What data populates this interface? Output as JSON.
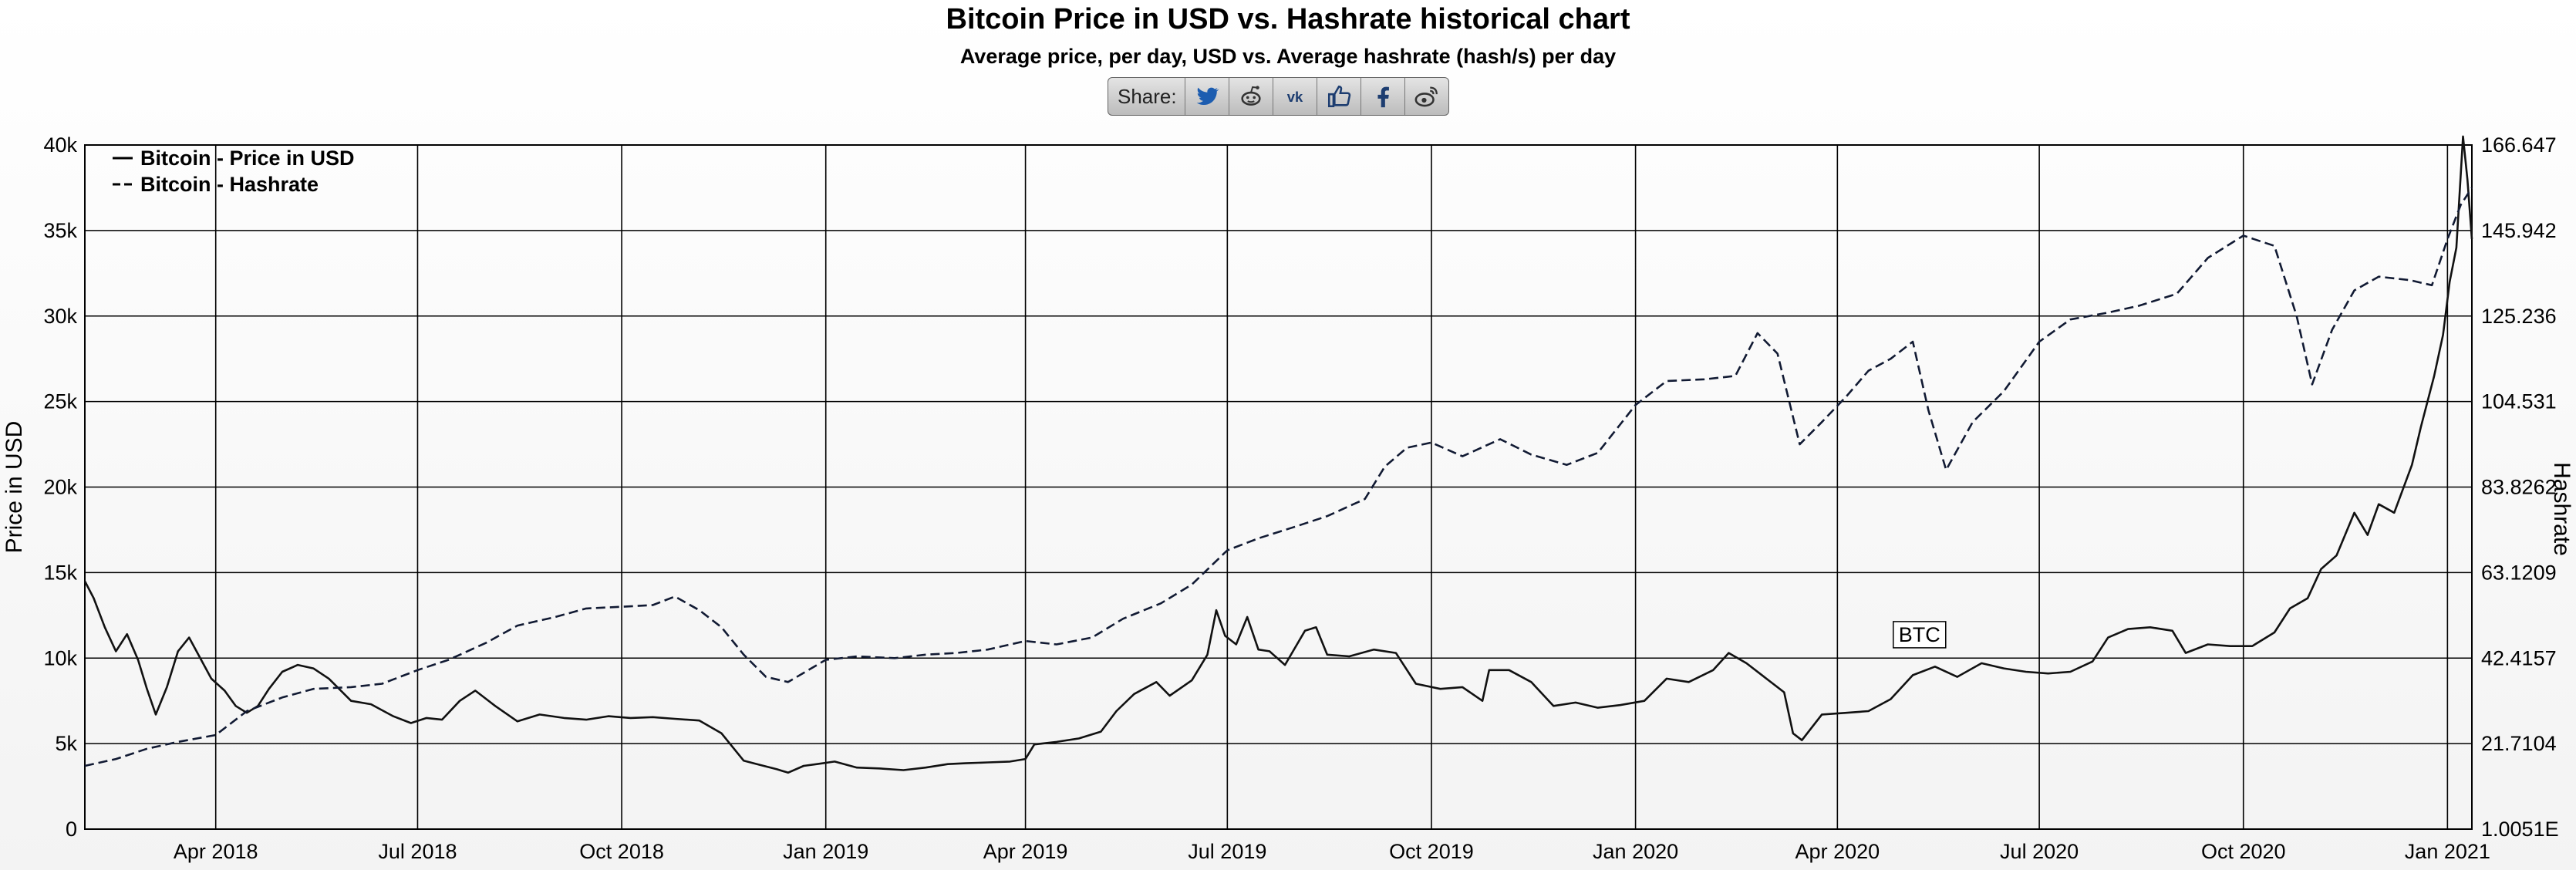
{
  "title": "Bitcoin Price in USD vs. Hashrate historical chart",
  "subtitle": "Average price, per day, USD vs. Average hashrate (hash/s) per day",
  "share": {
    "label": "Share:",
    "buttons": [
      "twitter-icon",
      "reddit-icon",
      "vk-icon",
      "like-icon",
      "facebook-icon",
      "weibo-icon"
    ]
  },
  "colors": {
    "price_line": "#111111",
    "hashrate_line": "#111a33",
    "grid": "#000000"
  },
  "chart_data": {
    "type": "line",
    "ylabel_left": "Price in USD",
    "ylabel_right": "Hashrate",
    "x_ticks": [
      "Apr 2018",
      "Jul 2018",
      "Oct 2018",
      "Jan 2019",
      "Apr 2019",
      "Jul 2019",
      "Oct 2019",
      "Jan 2020",
      "Apr 2020",
      "Jul 2020",
      "Oct 2020",
      "Jan 2021"
    ],
    "x_range": [
      "2018-02-01",
      "2021-01-12"
    ],
    "y_left_ticks": [
      "0",
      "5k",
      "10k",
      "15k",
      "20k",
      "25k",
      "30k",
      "35k",
      "40k"
    ],
    "y_left_range": [
      0,
      40000
    ],
    "y_right_ticks": [
      "1.0051E",
      "21.7104",
      "42.4157",
      "63.1209",
      "83.8262",
      "104.531",
      "125.236",
      "145.942",
      "166.647"
    ],
    "grid": true,
    "legend_position": "top-left",
    "annotation": "BTC",
    "series": [
      {
        "name": "Bitcoin - Price in USD",
        "style": "solid",
        "axis": "left",
        "points": [
          [
            "2018-02-01",
            14500
          ],
          [
            "2018-02-05",
            13500
          ],
          [
            "2018-02-10",
            11800
          ],
          [
            "2018-02-15",
            10400
          ],
          [
            "2018-02-20",
            11400
          ],
          [
            "2018-02-25",
            9900
          ],
          [
            "2018-03-01",
            8200
          ],
          [
            "2018-03-05",
            6700
          ],
          [
            "2018-03-10",
            8300
          ],
          [
            "2018-03-15",
            10400
          ],
          [
            "2018-03-20",
            11200
          ],
          [
            "2018-03-25",
            10000
          ],
          [
            "2018-03-30",
            8800
          ],
          [
            "2018-04-05",
            8100
          ],
          [
            "2018-04-10",
            7200
          ],
          [
            "2018-04-15",
            6800
          ],
          [
            "2018-04-20",
            7200
          ],
          [
            "2018-04-25",
            8200
          ],
          [
            "2018-05-01",
            9200
          ],
          [
            "2018-05-08",
            9600
          ],
          [
            "2018-05-15",
            9400
          ],
          [
            "2018-05-22",
            8800
          ],
          [
            "2018-06-01",
            7500
          ],
          [
            "2018-06-10",
            7300
          ],
          [
            "2018-06-20",
            6600
          ],
          [
            "2018-06-28",
            6200
          ],
          [
            "2018-07-05",
            6500
          ],
          [
            "2018-07-12",
            6400
          ],
          [
            "2018-07-20",
            7500
          ],
          [
            "2018-07-27",
            8100
          ],
          [
            "2018-08-05",
            7200
          ],
          [
            "2018-08-15",
            6300
          ],
          [
            "2018-08-25",
            6700
          ],
          [
            "2018-09-05",
            6500
          ],
          [
            "2018-09-15",
            6400
          ],
          [
            "2018-09-25",
            6600
          ],
          [
            "2018-10-05",
            6500
          ],
          [
            "2018-10-15",
            6550
          ],
          [
            "2018-10-25",
            6450
          ],
          [
            "2018-11-05",
            6350
          ],
          [
            "2018-11-15",
            5600
          ],
          [
            "2018-11-20",
            4800
          ],
          [
            "2018-11-25",
            4000
          ],
          [
            "2018-12-01",
            3800
          ],
          [
            "2018-12-10",
            3500
          ],
          [
            "2018-12-15",
            3300
          ],
          [
            "2018-12-22",
            3700
          ],
          [
            "2018-12-28",
            3800
          ],
          [
            "2019-01-05",
            3950
          ],
          [
            "2019-01-15",
            3600
          ],
          [
            "2019-01-25",
            3550
          ],
          [
            "2019-02-05",
            3450
          ],
          [
            "2019-02-15",
            3600
          ],
          [
            "2019-02-25",
            3800
          ],
          [
            "2019-03-05",
            3850
          ],
          [
            "2019-03-15",
            3900
          ],
          [
            "2019-03-25",
            3950
          ],
          [
            "2019-04-01",
            4100
          ],
          [
            "2019-04-05",
            4950
          ],
          [
            "2019-04-15",
            5100
          ],
          [
            "2019-04-25",
            5300
          ],
          [
            "2019-05-05",
            5700
          ],
          [
            "2019-05-12",
            6900
          ],
          [
            "2019-05-20",
            7900
          ],
          [
            "2019-05-30",
            8600
          ],
          [
            "2019-06-05",
            7800
          ],
          [
            "2019-06-15",
            8700
          ],
          [
            "2019-06-22",
            10200
          ],
          [
            "2019-06-26",
            12800
          ],
          [
            "2019-06-30",
            11300
          ],
          [
            "2019-07-05",
            10800
          ],
          [
            "2019-07-10",
            12400
          ],
          [
            "2019-07-15",
            10500
          ],
          [
            "2019-07-20",
            10400
          ],
          [
            "2019-07-27",
            9600
          ],
          [
            "2019-08-05",
            11600
          ],
          [
            "2019-08-10",
            11800
          ],
          [
            "2019-08-15",
            10200
          ],
          [
            "2019-08-25",
            10100
          ],
          [
            "2019-09-05",
            10500
          ],
          [
            "2019-09-15",
            10300
          ],
          [
            "2019-09-24",
            8500
          ],
          [
            "2019-10-05",
            8200
          ],
          [
            "2019-10-15",
            8300
          ],
          [
            "2019-10-24",
            7500
          ],
          [
            "2019-10-27",
            9300
          ],
          [
            "2019-11-05",
            9300
          ],
          [
            "2019-11-15",
            8600
          ],
          [
            "2019-11-25",
            7200
          ],
          [
            "2019-12-05",
            7400
          ],
          [
            "2019-12-15",
            7100
          ],
          [
            "2019-12-25",
            7250
          ],
          [
            "2020-01-05",
            7500
          ],
          [
            "2020-01-15",
            8800
          ],
          [
            "2020-01-25",
            8600
          ],
          [
            "2020-02-05",
            9300
          ],
          [
            "2020-02-12",
            10300
          ],
          [
            "2020-02-20",
            9700
          ],
          [
            "2020-03-01",
            8700
          ],
          [
            "2020-03-08",
            8000
          ],
          [
            "2020-03-12",
            5600
          ],
          [
            "2020-03-16",
            5200
          ],
          [
            "2020-03-25",
            6700
          ],
          [
            "2020-04-05",
            6800
          ],
          [
            "2020-04-15",
            6900
          ],
          [
            "2020-04-25",
            7600
          ],
          [
            "2020-05-05",
            9000
          ],
          [
            "2020-05-15",
            9500
          ],
          [
            "2020-05-25",
            8900
          ],
          [
            "2020-06-05",
            9700
          ],
          [
            "2020-06-15",
            9400
          ],
          [
            "2020-06-25",
            9200
          ],
          [
            "2020-07-05",
            9100
          ],
          [
            "2020-07-15",
            9200
          ],
          [
            "2020-07-25",
            9800
          ],
          [
            "2020-08-01",
            11200
          ],
          [
            "2020-08-10",
            11700
          ],
          [
            "2020-08-20",
            11800
          ],
          [
            "2020-08-30",
            11600
          ],
          [
            "2020-09-05",
            10300
          ],
          [
            "2020-09-15",
            10800
          ],
          [
            "2020-09-25",
            10700
          ],
          [
            "2020-10-05",
            10700
          ],
          [
            "2020-10-15",
            11500
          ],
          [
            "2020-10-22",
            12900
          ],
          [
            "2020-10-30",
            13500
          ],
          [
            "2020-11-05",
            15200
          ],
          [
            "2020-11-12",
            16000
          ],
          [
            "2020-11-20",
            18500
          ],
          [
            "2020-11-26",
            17200
          ],
          [
            "2020-12-01",
            19000
          ],
          [
            "2020-12-08",
            18500
          ],
          [
            "2020-12-16",
            21300
          ],
          [
            "2020-12-20",
            23500
          ],
          [
            "2020-12-26",
            26500
          ],
          [
            "2020-12-30",
            28900
          ],
          [
            "2021-01-02",
            32000
          ],
          [
            "2021-01-05",
            34000
          ],
          [
            "2021-01-08",
            40500
          ],
          [
            "2021-01-10",
            38000
          ],
          [
            "2021-01-12",
            34500
          ]
        ]
      },
      {
        "name": "Bitcoin - Hashrate",
        "style": "dashed",
        "axis": "left",
        "points": [
          [
            "2018-02-01",
            3700
          ],
          [
            "2018-02-15",
            4100
          ],
          [
            "2018-03-01",
            4700
          ],
          [
            "2018-03-15",
            5100
          ],
          [
            "2018-04-01",
            5500
          ],
          [
            "2018-04-15",
            6900
          ],
          [
            "2018-05-01",
            7700
          ],
          [
            "2018-05-15",
            8200
          ],
          [
            "2018-06-01",
            8300
          ],
          [
            "2018-06-15",
            8500
          ],
          [
            "2018-07-01",
            9300
          ],
          [
            "2018-07-15",
            9900
          ],
          [
            "2018-08-01",
            10900
          ],
          [
            "2018-08-15",
            11900
          ],
          [
            "2018-09-01",
            12400
          ],
          [
            "2018-09-15",
            12900
          ],
          [
            "2018-10-01",
            13000
          ],
          [
            "2018-10-15",
            13100
          ],
          [
            "2018-10-25",
            13600
          ],
          [
            "2018-11-05",
            12800
          ],
          [
            "2018-11-15",
            11800
          ],
          [
            "2018-11-25",
            10200
          ],
          [
            "2018-12-05",
            8900
          ],
          [
            "2018-12-15",
            8600
          ],
          [
            "2019-01-01",
            9900
          ],
          [
            "2019-01-15",
            10100
          ],
          [
            "2019-02-01",
            10000
          ],
          [
            "2019-02-15",
            10200
          ],
          [
            "2019-03-01",
            10300
          ],
          [
            "2019-03-15",
            10500
          ],
          [
            "2019-04-01",
            11000
          ],
          [
            "2019-04-15",
            10800
          ],
          [
            "2019-05-01",
            11200
          ],
          [
            "2019-05-15",
            12300
          ],
          [
            "2019-06-01",
            13200
          ],
          [
            "2019-06-15",
            14300
          ],
          [
            "2019-07-01",
            16300
          ],
          [
            "2019-07-15",
            17000
          ],
          [
            "2019-08-01",
            17700
          ],
          [
            "2019-08-15",
            18300
          ],
          [
            "2019-09-01",
            19300
          ],
          [
            "2019-09-10",
            21200
          ],
          [
            "2019-09-20",
            22300
          ],
          [
            "2019-10-01",
            22600
          ],
          [
            "2019-10-15",
            21800
          ],
          [
            "2019-11-01",
            22800
          ],
          [
            "2019-11-15",
            21900
          ],
          [
            "2019-12-01",
            21300
          ],
          [
            "2019-12-15",
            22000
          ],
          [
            "2020-01-01",
            24800
          ],
          [
            "2020-01-15",
            26200
          ],
          [
            "2020-02-01",
            26300
          ],
          [
            "2020-02-15",
            26500
          ],
          [
            "2020-02-25",
            29000
          ],
          [
            "2020-03-05",
            27800
          ],
          [
            "2020-03-15",
            22500
          ],
          [
            "2020-03-25",
            23800
          ],
          [
            "2020-04-05",
            25300
          ],
          [
            "2020-04-15",
            26800
          ],
          [
            "2020-04-25",
            27500
          ],
          [
            "2020-05-05",
            28500
          ],
          [
            "2020-05-12",
            24500
          ],
          [
            "2020-05-20",
            21000
          ],
          [
            "2020-06-01",
            23800
          ],
          [
            "2020-06-15",
            25600
          ],
          [
            "2020-07-01",
            28500
          ],
          [
            "2020-07-15",
            29800
          ],
          [
            "2020-08-01",
            30200
          ],
          [
            "2020-08-15",
            30600
          ],
          [
            "2020-09-01",
            31300
          ],
          [
            "2020-09-15",
            33400
          ],
          [
            "2020-10-01",
            34700
          ],
          [
            "2020-10-15",
            34100
          ],
          [
            "2020-10-25",
            30000
          ],
          [
            "2020-11-01",
            26000
          ],
          [
            "2020-11-10",
            29200
          ],
          [
            "2020-11-20",
            31500
          ],
          [
            "2020-12-01",
            32300
          ],
          [
            "2020-12-15",
            32100
          ],
          [
            "2020-12-25",
            31800
          ],
          [
            "2021-01-01",
            34500
          ],
          [
            "2021-01-07",
            36500
          ],
          [
            "2021-01-12",
            37500
          ]
        ]
      }
    ]
  }
}
